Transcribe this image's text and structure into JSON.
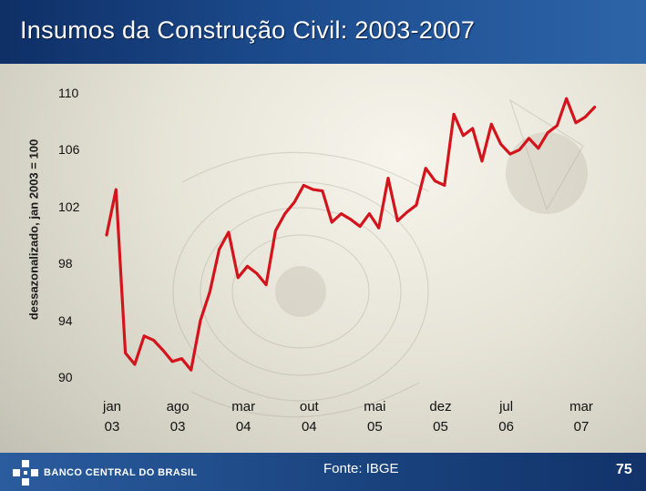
{
  "slide": {
    "title": "Insumos da Construção Civil: 2003-2007",
    "source": "Fonte: IBGE",
    "page_number": "75",
    "bank_name": "BANCO CENTRAL DO BRASIL"
  },
  "colors": {
    "header": "#1c4c8e",
    "line": "#d4141c",
    "text": "#111111"
  },
  "icons": {
    "bank_logo": "banco-central-logo-icon"
  },
  "chart_data": {
    "type": "line",
    "title": "Insumos da Construção Civil: 2003-2007",
    "ylabel": "dessazonalizado, jan 2003 = 100",
    "xlabel": "",
    "ylim": [
      90,
      110
    ],
    "yticks": [
      "110",
      "106",
      "102",
      "98",
      "94",
      "90"
    ],
    "xtick_labels": [
      {
        "month": "jan",
        "year": "03",
        "index": 0
      },
      {
        "month": "ago",
        "year": "03",
        "index": 7
      },
      {
        "month": "mar",
        "year": "04",
        "index": 14
      },
      {
        "month": "out",
        "year": "04",
        "index": 21
      },
      {
        "month": "mai",
        "year": "05",
        "index": 28
      },
      {
        "month": "dez",
        "year": "05",
        "index": 35
      },
      {
        "month": "jul",
        "year": "06",
        "index": 42
      },
      {
        "month": "mar",
        "year": "07",
        "index": 50
      }
    ],
    "grid": false,
    "legend": "none",
    "series": [
      {
        "values": [
          100.0,
          103.2,
          91.7,
          90.9,
          92.9,
          92.6,
          91.9,
          91.1,
          91.3,
          90.5,
          94.0,
          96.0,
          99.0,
          100.2,
          97.0,
          97.8,
          97.3,
          96.5,
          100.3,
          101.5,
          102.3,
          103.5,
          103.2,
          103.1,
          100.9,
          101.5,
          101.1,
          100.6,
          101.5,
          100.5,
          104.0,
          101.0,
          101.6,
          102.1,
          104.7,
          103.8,
          103.5,
          108.5,
          107.0,
          107.5,
          105.2,
          107.8,
          106.4,
          105.7,
          106.0,
          106.8,
          106.1,
          107.2,
          107.7,
          109.6,
          107.9,
          108.3,
          109.0
        ]
      }
    ]
  }
}
